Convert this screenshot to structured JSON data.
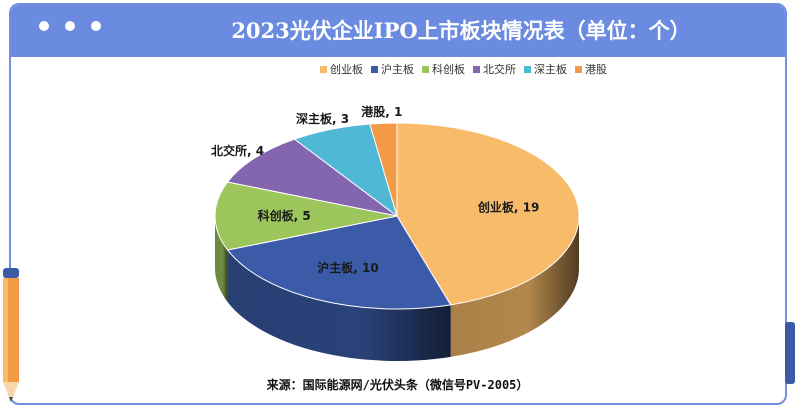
{
  "header": {
    "title": "2023光伏企业IPO上市板块情况表（单位：个）"
  },
  "footer": {
    "source": "来源：国际能源网/光伏头条（微信号PV-2005）"
  },
  "colors": {
    "title_bar": "#6b8be0",
    "frame": "#6f8fe0"
  },
  "chart_data": {
    "type": "pie",
    "style": "3d",
    "title": "2023光伏企业IPO上市板块情况表（单位：个）",
    "legend_position": "top",
    "categories": [
      "创业板",
      "沪主板",
      "科创板",
      "北交所",
      "深主板",
      "港股"
    ],
    "values": [
      19,
      10,
      5,
      4,
      3,
      1
    ],
    "colors": [
      "#f8bb6a",
      "#3b5ba8",
      "#9cc55c",
      "#8465b0",
      "#4fb8d5",
      "#f39a46"
    ],
    "data_labels": [
      "创业板, 19",
      "沪主板, 10",
      "科创板, 5",
      "北交所, 4",
      "深主板, 3",
      "港股, 1"
    ]
  }
}
